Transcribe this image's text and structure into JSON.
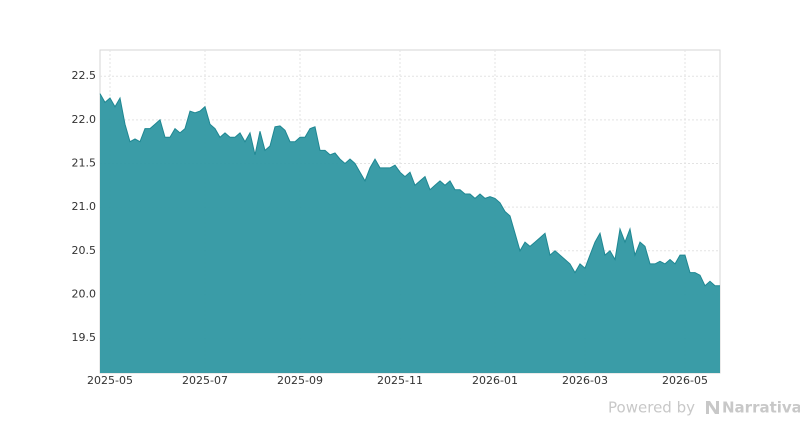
{
  "chart_data": {
    "type": "area",
    "color": "#3499a4",
    "line_color": "#1f8792",
    "grid": true,
    "categories": [
      null,
      null,
      "2025-05",
      null,
      null,
      null,
      null,
      null,
      null,
      null,
      null,
      null,
      null,
      null,
      null,
      null,
      null,
      null,
      null,
      null,
      null,
      "2025-07",
      null,
      null,
      null,
      null,
      null,
      null,
      null,
      null,
      null,
      null,
      null,
      null,
      null,
      null,
      null,
      null,
      null,
      null,
      "2025-09",
      null,
      null,
      null,
      null,
      null,
      null,
      null,
      null,
      null,
      null,
      null,
      null,
      null,
      null,
      null,
      null,
      null,
      null,
      null,
      "2025-11",
      null,
      null,
      null,
      null,
      null,
      null,
      null,
      null,
      null,
      null,
      null,
      null,
      null,
      null,
      null,
      null,
      null,
      null,
      "2026-01",
      null,
      null,
      null,
      null,
      null,
      null,
      null,
      null,
      null,
      null,
      null,
      null,
      null,
      null,
      null,
      null,
      null,
      "2026-03",
      null,
      null,
      null,
      null,
      null,
      null,
      null,
      null,
      null,
      null,
      null,
      null,
      null,
      null,
      null,
      null,
      null,
      null,
      null,
      "2026-05",
      null,
      null,
      null,
      null,
      null,
      null,
      null
    ],
    "values": [
      22.3,
      22.2,
      22.25,
      22.15,
      22.25,
      21.95,
      21.75,
      21.78,
      21.75,
      21.9,
      21.9,
      21.95,
      22.0,
      21.8,
      21.8,
      21.9,
      21.85,
      21.9,
      22.1,
      22.08,
      22.1,
      22.15,
      21.95,
      21.9,
      21.8,
      21.85,
      21.8,
      21.8,
      21.85,
      21.75,
      21.85,
      21.6,
      21.87,
      21.65,
      21.7,
      21.92,
      21.93,
      21.88,
      21.75,
      21.75,
      21.8,
      21.8,
      21.9,
      21.92,
      21.65,
      21.65,
      21.6,
      21.62,
      21.55,
      21.5,
      21.55,
      21.5,
      21.4,
      21.3,
      21.45,
      21.55,
      21.45,
      21.45,
      21.45,
      21.48,
      21.4,
      21.35,
      21.4,
      21.25,
      21.3,
      21.35,
      21.2,
      21.25,
      21.3,
      21.25,
      21.3,
      21.2,
      21.2,
      21.15,
      21.15,
      21.1,
      21.15,
      21.1,
      21.12,
      21.1,
      21.05,
      20.95,
      20.9,
      20.7,
      20.5,
      20.6,
      20.55,
      20.6,
      20.65,
      20.7,
      20.45,
      20.5,
      20.45,
      20.4,
      20.35,
      20.25,
      20.35,
      20.3,
      20.45,
      20.6,
      20.7,
      20.45,
      20.5,
      20.4,
      20.75,
      20.6,
      20.75,
      20.45,
      20.6,
      20.55,
      20.35,
      20.35,
      20.38,
      20.35,
      20.4,
      20.35,
      20.45,
      20.45,
      20.25,
      20.25,
      20.22,
      20.1,
      20.15,
      20.1,
      20.1
    ],
    "ylim": [
      19.1,
      22.8
    ],
    "yticks": [
      19.5,
      {
        "value": 20,
        "label": "20.0"
      },
      20.5,
      {
        "value": 21,
        "label": "21.0"
      },
      21.5,
      {
        "value": 22,
        "label": "22.0"
      },
      22.5
    ]
  },
  "credit": {
    "prefix": "Powered by",
    "brand": "Narrativa"
  }
}
